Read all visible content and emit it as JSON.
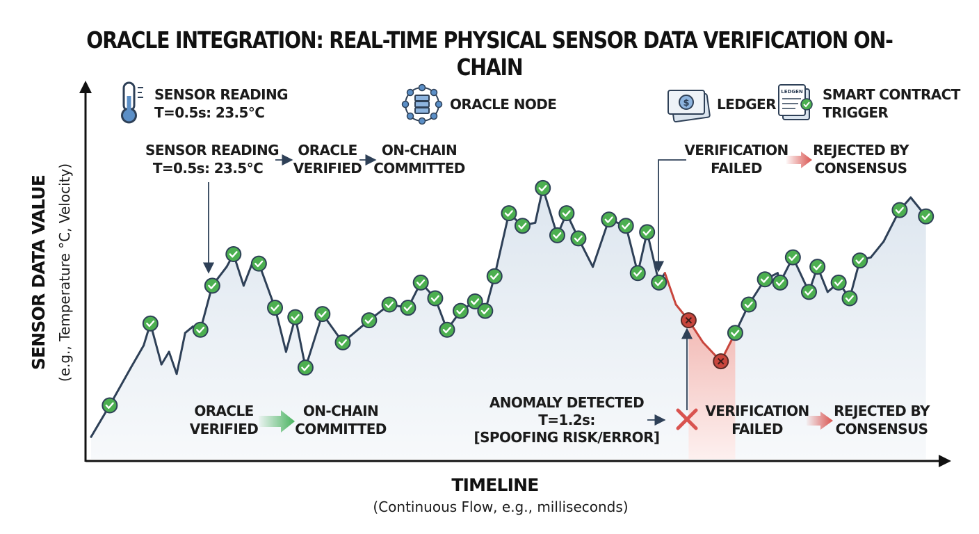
{
  "title": "ORACLE INTEGRATION: REAL-TIME PHYSICAL SENSOR DATA VERIFICATION ON-CHAIN",
  "legend": {
    "sensor_line1": "SENSOR READING",
    "sensor_line2": "T=0.5s: 23.5°C",
    "oracle_node": "ORACLE NODE",
    "ledger": "LEDGER",
    "ledger_icon_text": "LEDGEN",
    "dollar_sign": "$",
    "smart_line1": "SMART CONTRACT",
    "smart_line2": "TRIGGER"
  },
  "annotations": {
    "flow_top_left": {
      "sensor_line1": "SENSOR READING",
      "sensor_line2": "T=0.5s: 23.5°C",
      "oracle_line1": "ORACLE",
      "oracle_line2": "VERIFIED",
      "onchain_line1": "ON-CHAIN",
      "onchain_line2": "COMMITTED"
    },
    "flow_top_right": {
      "failed_line1": "VERIFICATION",
      "failed_line2": "FAILED",
      "rejected_line1": "REJECTED BY",
      "rejected_line2": "CONSENSUS"
    },
    "flow_bottom_left": {
      "oracle_line1": "ORACLE",
      "oracle_line2": "VERIFIED",
      "onchain_line1": "ON-CHAIN",
      "onchain_line2": "COMMITTED"
    },
    "flow_bottom_right": {
      "anomaly_line1": "ANOMALY DETECTED",
      "anomaly_line2": "T=1.2s:",
      "anomaly_line3": "[SPOOFING RISK/ERROR]",
      "failed_line1": "VERIFICATION",
      "failed_line2": "FAILED",
      "rejected_line1": "REJECTED BY",
      "rejected_line2": "CONSENSUS"
    }
  },
  "chart_data": {
    "type": "line",
    "title": "ORACLE INTEGRATION: REAL-TIME PHYSICAL SENSOR DATA VERIFICATION ON-CHAIN",
    "xlabel": "TIMELINE",
    "xlabel_sub": "(Continuous Flow, e.g., milliseconds)",
    "ylabel": "SENSOR DATA VALUE",
    "ylabel_sub": "(e.g., Temperature °C, Velocity)",
    "xlim": [
      0,
      100
    ],
    "ylim": [
      0,
      100
    ],
    "grid": false,
    "colors": {
      "line": "#2e4057",
      "anomaly_line": "#c8453c",
      "verified_marker": "#4caf50",
      "rejected_marker": "#c8453c",
      "area": "#e6edf4",
      "anomaly_area": "#f4c6c2",
      "arrow_green": "#49b35f",
      "arrow_red": "#d9534f"
    },
    "series": [
      {
        "name": "Sensor readings",
        "points": [
          {
            "x": 0.0,
            "y": 7,
            "s": "line"
          },
          {
            "x": 2.2,
            "y": 17,
            "s": "verified"
          },
          {
            "x": 4.7,
            "y": 29,
            "s": "line"
          },
          {
            "x": 6.2,
            "y": 36,
            "s": "line"
          },
          {
            "x": 7.0,
            "y": 43,
            "s": "verified"
          },
          {
            "x": 8.3,
            "y": 30,
            "s": "line"
          },
          {
            "x": 9.2,
            "y": 34,
            "s": "line"
          },
          {
            "x": 10.1,
            "y": 27,
            "s": "line"
          },
          {
            "x": 11.1,
            "y": 40,
            "s": "line"
          },
          {
            "x": 12.0,
            "y": 42,
            "s": "line"
          },
          {
            "x": 12.9,
            "y": 41,
            "s": "verified"
          },
          {
            "x": 14.3,
            "y": 55,
            "s": "verified"
          },
          {
            "x": 16.0,
            "y": 61,
            "s": "line"
          },
          {
            "x": 16.8,
            "y": 65,
            "s": "verified"
          },
          {
            "x": 18.0,
            "y": 55,
            "s": "line"
          },
          {
            "x": 19.0,
            "y": 62,
            "s": "line"
          },
          {
            "x": 19.8,
            "y": 62,
            "s": "verified"
          },
          {
            "x": 21.7,
            "y": 48,
            "s": "verified"
          },
          {
            "x": 23.0,
            "y": 34,
            "s": "line"
          },
          {
            "x": 24.1,
            "y": 45,
            "s": "verified"
          },
          {
            "x": 25.3,
            "y": 29,
            "s": "verified"
          },
          {
            "x": 27.3,
            "y": 46,
            "s": "verified"
          },
          {
            "x": 29.7,
            "y": 37,
            "s": "verified"
          },
          {
            "x": 32.8,
            "y": 44,
            "s": "verified"
          },
          {
            "x": 35.2,
            "y": 49,
            "s": "verified"
          },
          {
            "x": 37.4,
            "y": 48,
            "s": "verified"
          },
          {
            "x": 38.9,
            "y": 56,
            "s": "verified"
          },
          {
            "x": 40.6,
            "y": 51,
            "s": "verified"
          },
          {
            "x": 42.0,
            "y": 41,
            "s": "verified"
          },
          {
            "x": 43.6,
            "y": 47,
            "s": "verified"
          },
          {
            "x": 45.3,
            "y": 50,
            "s": "verified"
          },
          {
            "x": 46.5,
            "y": 47,
            "s": "verified"
          },
          {
            "x": 47.6,
            "y": 58,
            "s": "verified"
          },
          {
            "x": 49.3,
            "y": 78,
            "s": "verified"
          },
          {
            "x": 50.9,
            "y": 74,
            "s": "verified"
          },
          {
            "x": 52.4,
            "y": 75,
            "s": "line"
          },
          {
            "x": 53.3,
            "y": 86,
            "s": "verified"
          },
          {
            "x": 55.0,
            "y": 71,
            "s": "verified"
          },
          {
            "x": 56.1,
            "y": 78,
            "s": "verified"
          },
          {
            "x": 57.5,
            "y": 70,
            "s": "verified"
          },
          {
            "x": 59.2,
            "y": 61,
            "s": "line"
          },
          {
            "x": 61.1,
            "y": 76,
            "s": "verified"
          },
          {
            "x": 63.1,
            "y": 74,
            "s": "verified"
          },
          {
            "x": 64.5,
            "y": 59,
            "s": "verified"
          },
          {
            "x": 65.6,
            "y": 72,
            "s": "verified"
          },
          {
            "x": 67.0,
            "y": 56,
            "s": "verified"
          },
          {
            "x": 67.7,
            "y": 59,
            "s": "line"
          },
          {
            "x": 69.0,
            "y": 49,
            "s": "anomaly"
          },
          {
            "x": 70.5,
            "y": 44,
            "s": "rejected"
          },
          {
            "x": 72.2,
            "y": 37,
            "s": "anomaly"
          },
          {
            "x": 74.3,
            "y": 31,
            "s": "rejected"
          },
          {
            "x": 76.0,
            "y": 40,
            "s": "verified"
          },
          {
            "x": 77.6,
            "y": 49,
            "s": "verified"
          },
          {
            "x": 79.5,
            "y": 57,
            "s": "verified"
          },
          {
            "x": 81.0,
            "y": 59,
            "s": "line"
          },
          {
            "x": 81.3,
            "y": 56,
            "s": "verified"
          },
          {
            "x": 82.8,
            "y": 64,
            "s": "verified"
          },
          {
            "x": 84.7,
            "y": 53,
            "s": "verified"
          },
          {
            "x": 85.7,
            "y": 61,
            "s": "verified"
          },
          {
            "x": 86.9,
            "y": 53,
            "s": "line"
          },
          {
            "x": 88.2,
            "y": 56,
            "s": "verified"
          },
          {
            "x": 89.5,
            "y": 51,
            "s": "verified"
          },
          {
            "x": 90.7,
            "y": 63,
            "s": "verified"
          },
          {
            "x": 92.0,
            "y": 64,
            "s": "line"
          },
          {
            "x": 93.5,
            "y": 69,
            "s": "line"
          },
          {
            "x": 95.4,
            "y": 79,
            "s": "verified"
          },
          {
            "x": 96.7,
            "y": 83,
            "s": "line"
          },
          {
            "x": 98.5,
            "y": 77,
            "s": "verified"
          }
        ]
      }
    ],
    "anomaly_range": [
      70.5,
      76.0
    ]
  }
}
